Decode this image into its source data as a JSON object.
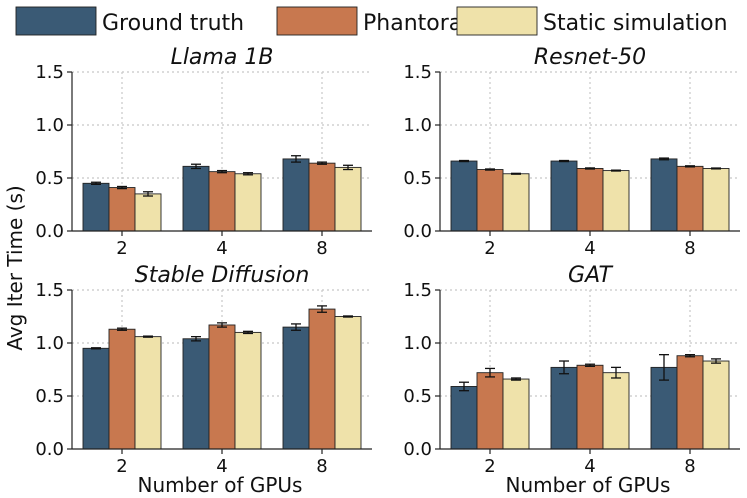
{
  "legend": [
    {
      "label": "Ground truth",
      "color": "#3a5a75"
    },
    {
      "label": "Phantora",
      "color": "#c8784f"
    },
    {
      "label": "Static simulation",
      "color": "#efe2aa"
    }
  ],
  "ylabel": "Avg Iter Time (s)",
  "xlabel": "Number of GPUs",
  "chart_data": [
    {
      "type": "bar",
      "title": "Llama 1B",
      "categories": [
        "2",
        "4",
        "8"
      ],
      "ylim": [
        0,
        1.5
      ],
      "yticks": [
        "0.0",
        "0.5",
        "1.0",
        "1.5"
      ],
      "grid": true,
      "series": [
        {
          "name": "Ground truth",
          "values": [
            0.45,
            0.61,
            0.68
          ],
          "errors": [
            0.01,
            0.02,
            0.03
          ]
        },
        {
          "name": "Phantora",
          "values": [
            0.41,
            0.56,
            0.64
          ],
          "errors": [
            0.01,
            0.01,
            0.01
          ]
        },
        {
          "name": "Static simulation",
          "values": [
            0.35,
            0.54,
            0.6
          ],
          "errors": [
            0.02,
            0.01,
            0.02
          ]
        }
      ]
    },
    {
      "type": "bar",
      "title": "Resnet-50",
      "categories": [
        "2",
        "4",
        "8"
      ],
      "ylim": [
        0,
        1.5
      ],
      "yticks": [
        "0.0",
        "0.5",
        "1.0",
        "1.5"
      ],
      "grid": true,
      "series": [
        {
          "name": "Ground truth",
          "values": [
            0.66,
            0.66,
            0.68
          ],
          "errors": [
            0.005,
            0.005,
            0.008
          ]
        },
        {
          "name": "Phantora",
          "values": [
            0.58,
            0.59,
            0.61
          ],
          "errors": [
            0.005,
            0.005,
            0.005
          ]
        },
        {
          "name": "Static simulation",
          "values": [
            0.54,
            0.57,
            0.59
          ],
          "errors": [
            0.004,
            0.004,
            0.004
          ]
        }
      ]
    },
    {
      "type": "bar",
      "title": "Stable Diffusion",
      "categories": [
        "2",
        "4",
        "8"
      ],
      "ylim": [
        0,
        1.5
      ],
      "yticks": [
        "0.0",
        "0.5",
        "1.0",
        "1.5"
      ],
      "grid": true,
      "series": [
        {
          "name": "Ground truth",
          "values": [
            0.95,
            1.04,
            1.15
          ],
          "errors": [
            0.005,
            0.02,
            0.03
          ]
        },
        {
          "name": "Phantora",
          "values": [
            1.13,
            1.17,
            1.32
          ],
          "errors": [
            0.01,
            0.02,
            0.03
          ]
        },
        {
          "name": "Static simulation",
          "values": [
            1.06,
            1.1,
            1.25
          ],
          "errors": [
            0.005,
            0.01,
            0.005
          ]
        }
      ]
    },
    {
      "type": "bar",
      "title": "GAT",
      "categories": [
        "2",
        "4",
        "8"
      ],
      "ylim": [
        0,
        1.5
      ],
      "yticks": [
        "0.0",
        "0.5",
        "1.0",
        "1.5"
      ],
      "grid": true,
      "series": [
        {
          "name": "Ground truth",
          "values": [
            0.59,
            0.77,
            0.77
          ],
          "errors": [
            0.04,
            0.06,
            0.12
          ]
        },
        {
          "name": "Phantora",
          "values": [
            0.72,
            0.79,
            0.88
          ],
          "errors": [
            0.04,
            0.01,
            0.01
          ]
        },
        {
          "name": "Static simulation",
          "values": [
            0.66,
            0.72,
            0.83
          ],
          "errors": [
            0.01,
            0.05,
            0.02
          ]
        }
      ]
    }
  ]
}
